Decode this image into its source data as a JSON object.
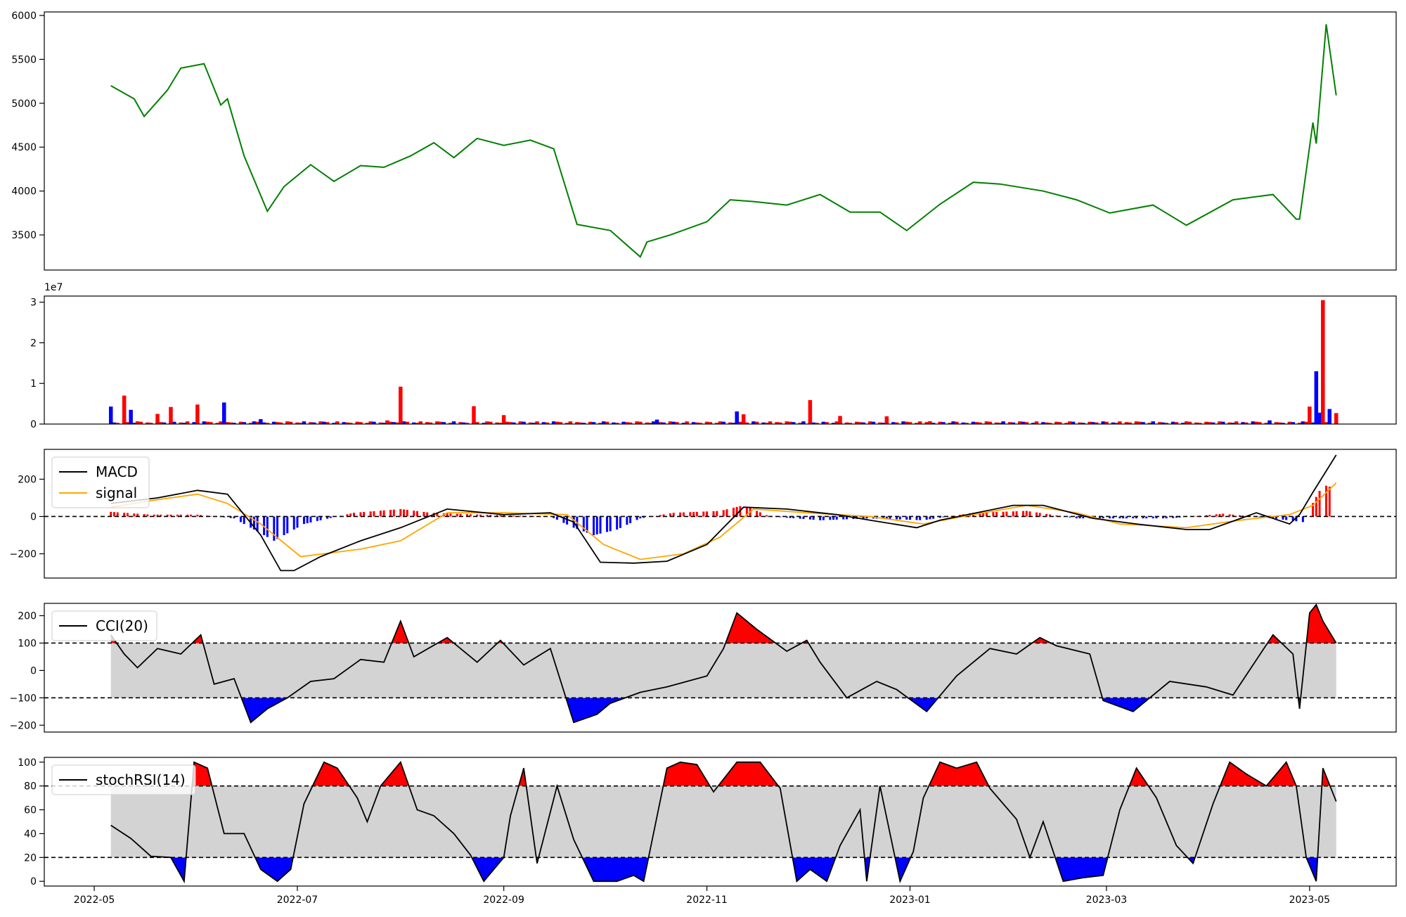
{
  "colors": {
    "price": "#008000",
    "up": "#ff0000",
    "down": "#0000ff",
    "macd": "#000000",
    "signal": "#ffa500",
    "band": "#d3d3d3",
    "axis": "#000000"
  },
  "chart_data": [
    {
      "id": "price",
      "type": "line",
      "ylim": [
        3100,
        6040
      ],
      "yticks": [
        "3500",
        "4000",
        "4500",
        "5000",
        "5500",
        "6000"
      ],
      "ytick_values": [
        3500,
        4000,
        4500,
        5000,
        5500,
        6000
      ],
      "series": [
        {
          "x": [
            "2022-05-06",
            "2022-05-13",
            "2022-05-16",
            "2022-05-23",
            "2022-05-27",
            "2022-06-03",
            "2022-06-08",
            "2022-06-10",
            "2022-06-15",
            "2022-06-22",
            "2022-06-27",
            "2022-07-05",
            "2022-07-12",
            "2022-07-20",
            "2022-07-27",
            "2022-08-04",
            "2022-08-11",
            "2022-08-17",
            "2022-08-24",
            "2022-09-01",
            "2022-09-09",
            "2022-09-16",
            "2022-09-23",
            "2022-10-03",
            "2022-10-12",
            "2022-10-14",
            "2022-10-21",
            "2022-11-01",
            "2022-11-08",
            "2022-11-15",
            "2022-11-25",
            "2022-12-05",
            "2022-12-14",
            "2022-12-23",
            "2022-12-31",
            "2023-01-10",
            "2023-01-20",
            "2023-01-28",
            "2023-02-10",
            "2023-02-20",
            "2023-03-02",
            "2023-03-15",
            "2023-03-25",
            "2023-04-08",
            "2023-04-20",
            "2023-04-27",
            "2023-04-28",
            "2023-05-02",
            "2023-05-03",
            "2023-05-06",
            "2023-05-09"
          ],
          "values": [
            5200,
            5050,
            4850,
            5150,
            5400,
            5450,
            4980,
            5050,
            4400,
            3770,
            4050,
            4300,
            4110,
            4290,
            4270,
            4400,
            4550,
            4380,
            4600,
            4520,
            4580,
            4480,
            3620,
            3550,
            3250,
            3420,
            3500,
            3650,
            3900,
            3880,
            3840,
            3960,
            3760,
            3760,
            3550,
            3850,
            4100,
            4080,
            4000,
            3900,
            3750,
            3840,
            3610,
            3900,
            3960,
            3680,
            3680,
            4780,
            4540,
            5900,
            5090
          ]
        }
      ]
    },
    {
      "id": "volume",
      "type": "bar",
      "ylim": [
        0,
        31500000
      ],
      "yticks": [
        "0",
        "1",
        "2",
        "3"
      ],
      "ytick_values": [
        0,
        10000000,
        20000000,
        30000000
      ],
      "offset_text": "1e7",
      "bars": [
        {
          "x": "2022-05-06",
          "value": 4300000,
          "dir": "down"
        },
        {
          "x": "2022-05-10",
          "value": 7000000,
          "dir": "up"
        },
        {
          "x": "2022-05-12",
          "value": 3500000,
          "dir": "down"
        },
        {
          "x": "2022-05-20",
          "value": 2500000,
          "dir": "up"
        },
        {
          "x": "2022-05-24",
          "value": 4200000,
          "dir": "up"
        },
        {
          "x": "2022-06-01",
          "value": 4800000,
          "dir": "up"
        },
        {
          "x": "2022-06-09",
          "value": 5300000,
          "dir": "down"
        },
        {
          "x": "2022-06-20",
          "value": 1200000,
          "dir": "down"
        },
        {
          "x": "2022-07-28",
          "value": 900000,
          "dir": "up"
        },
        {
          "x": "2022-08-01",
          "value": 9200000,
          "dir": "up"
        },
        {
          "x": "2022-08-23",
          "value": 4400000,
          "dir": "up"
        },
        {
          "x": "2022-09-01",
          "value": 2200000,
          "dir": "up"
        },
        {
          "x": "2022-10-17",
          "value": 1100000,
          "dir": "down"
        },
        {
          "x": "2022-11-10",
          "value": 3100000,
          "dir": "down"
        },
        {
          "x": "2022-11-12",
          "value": 2400000,
          "dir": "up"
        },
        {
          "x": "2022-12-02",
          "value": 5900000,
          "dir": "up"
        },
        {
          "x": "2022-12-11",
          "value": 2000000,
          "dir": "up"
        },
        {
          "x": "2022-12-25",
          "value": 1900000,
          "dir": "up"
        },
        {
          "x": "2023-01-07",
          "value": 700000,
          "dir": "up"
        },
        {
          "x": "2023-04-19",
          "value": 900000,
          "dir": "down"
        },
        {
          "x": "2023-05-01",
          "value": 4300000,
          "dir": "up"
        },
        {
          "x": "2023-05-03",
          "value": 13000000,
          "dir": "down"
        },
        {
          "x": "2023-05-04",
          "value": 2800000,
          "dir": "down"
        },
        {
          "x": "2023-05-05",
          "value": 30500000,
          "dir": "up"
        },
        {
          "x": "2023-05-07",
          "value": 3700000,
          "dir": "down"
        },
        {
          "x": "2023-05-09",
          "value": 2700000,
          "dir": "up"
        }
      ]
    },
    {
      "id": "macd",
      "type": "line",
      "ylim": [
        -330,
        360
      ],
      "yticks": [
        "−200",
        "0",
        "200"
      ],
      "ytick_values": [
        -200,
        0,
        200
      ],
      "zero_line": 0,
      "legend": [
        "MACD",
        "signal"
      ],
      "legend_position": "upper-left",
      "series": [
        {
          "name": "MACD",
          "x": [
            "2022-05-06",
            "2022-05-20",
            "2022-06-01",
            "2022-06-10",
            "2022-06-20",
            "2022-06-26",
            "2022-06-30",
            "2022-07-08",
            "2022-07-20",
            "2022-08-01",
            "2022-08-15",
            "2022-09-01",
            "2022-09-15",
            "2022-09-22",
            "2022-09-30",
            "2022-10-10",
            "2022-10-20",
            "2022-11-01",
            "2022-11-12",
            "2022-11-25",
            "2022-12-10",
            "2022-12-20",
            "2023-01-03",
            "2023-01-10",
            "2023-02-01",
            "2023-02-10",
            "2023-02-25",
            "2023-03-10",
            "2023-03-25",
            "2023-04-01",
            "2023-04-15",
            "2023-04-25",
            "2023-04-28",
            "2023-05-02",
            "2023-05-09"
          ],
          "values": [
            70,
            100,
            140,
            120,
            -100,
            -290,
            -290,
            -215,
            -130,
            -60,
            40,
            10,
            20,
            -30,
            -245,
            -250,
            -240,
            -150,
            50,
            40,
            10,
            -20,
            -60,
            -20,
            60,
            60,
            -10,
            -40,
            -70,
            -70,
            20,
            -40,
            10,
            130,
            330
          ]
        },
        {
          "name": "signal",
          "x": [
            "2022-05-06",
            "2022-05-20",
            "2022-06-01",
            "2022-06-10",
            "2022-06-20",
            "2022-07-02",
            "2022-07-20",
            "2022-08-01",
            "2022-08-15",
            "2022-09-01",
            "2022-09-20",
            "2022-10-01",
            "2022-10-12",
            "2022-10-25",
            "2022-11-05",
            "2022-11-15",
            "2022-12-01",
            "2022-12-20",
            "2023-01-05",
            "2023-01-20",
            "2023-02-05",
            "2023-02-20",
            "2023-03-05",
            "2023-03-25",
            "2023-04-10",
            "2023-04-25",
            "2023-05-02",
            "2023-05-09"
          ],
          "values": [
            50,
            90,
            120,
            70,
            -40,
            -215,
            -175,
            -130,
            20,
            20,
            10,
            -150,
            -230,
            -200,
            -110,
            40,
            20,
            0,
            -40,
            10,
            60,
            20,
            -40,
            -60,
            -20,
            10,
            60,
            180
          ]
        }
      ],
      "histogram": {
        "x": [
          "2022-05-06",
          "2022-05-18",
          "2022-06-01",
          "2022-06-12",
          "2022-06-18",
          "2022-06-24",
          "2022-07-03",
          "2022-07-18",
          "2022-08-01",
          "2022-08-10",
          "2022-08-25",
          "2022-09-15",
          "2022-09-22",
          "2022-09-28",
          "2022-10-05",
          "2022-10-12",
          "2022-10-22",
          "2022-11-05",
          "2022-11-12",
          "2022-11-20",
          "2022-12-05",
          "2022-12-20",
          "2023-01-05",
          "2023-01-20",
          "2023-02-05",
          "2023-02-20",
          "2023-03-05",
          "2023-03-20",
          "2023-04-05",
          "2023-04-20",
          "2023-04-29",
          "2023-05-01",
          "2023-05-05",
          "2023-05-09"
        ],
        "values": [
          25,
          10,
          10,
          -10,
          -70,
          -130,
          -40,
          20,
          40,
          20,
          10,
          0,
          -60,
          -100,
          -70,
          -10,
          20,
          30,
          60,
          0,
          -20,
          -10,
          -20,
          20,
          30,
          -10,
          -10,
          -10,
          15,
          -10,
          -30,
          40,
          170,
          150
        ]
      }
    },
    {
      "id": "cci",
      "type": "line",
      "ylim": [
        -225,
        245
      ],
      "yticks": [
        "−200",
        "−100",
        "0",
        "100",
        "200"
      ],
      "ytick_values": [
        -200,
        -100,
        0,
        100,
        200
      ],
      "thresholds": [
        100,
        -100
      ],
      "legend": [
        "CCI(20)"
      ],
      "legend_position": "upper-left",
      "series": [
        {
          "name": "CCI(20)",
          "x": [
            "2022-05-06",
            "2022-05-10",
            "2022-05-14",
            "2022-05-20",
            "2022-05-27",
            "2022-06-02",
            "2022-06-06",
            "2022-06-12",
            "2022-06-17",
            "2022-06-22",
            "2022-06-28",
            "2022-07-05",
            "2022-07-12",
            "2022-07-20",
            "2022-07-27",
            "2022-08-01",
            "2022-08-05",
            "2022-08-15",
            "2022-08-24",
            "2022-08-31",
            "2022-09-07",
            "2022-09-15",
            "2022-09-22",
            "2022-09-29",
            "2022-10-03",
            "2022-10-12",
            "2022-10-20",
            "2022-11-01",
            "2022-11-06",
            "2022-11-10",
            "2022-11-16",
            "2022-11-25",
            "2022-12-01",
            "2022-12-05",
            "2022-12-13",
            "2022-12-22",
            "2022-12-28",
            "2023-01-06",
            "2023-01-15",
            "2023-01-25",
            "2023-02-02",
            "2023-02-09",
            "2023-02-14",
            "2023-02-24",
            "2023-02-28",
            "2023-03-09",
            "2023-03-20",
            "2023-03-31",
            "2023-04-08",
            "2023-04-20",
            "2023-04-26",
            "2023-04-28",
            "2023-05-01",
            "2023-05-03",
            "2023-05-05",
            "2023-05-09"
          ],
          "values": [
            130,
            60,
            10,
            80,
            60,
            130,
            -50,
            -30,
            -190,
            -140,
            -100,
            -40,
            -30,
            40,
            30,
            180,
            50,
            120,
            30,
            110,
            20,
            80,
            -190,
            -160,
            -120,
            -80,
            -60,
            -20,
            80,
            210,
            150,
            70,
            110,
            30,
            -100,
            -40,
            -70,
            -150,
            -20,
            80,
            60,
            120,
            90,
            60,
            -110,
            -150,
            -40,
            -60,
            -90,
            130,
            60,
            -140,
            210,
            240,
            180,
            100
          ]
        }
      ]
    },
    {
      "id": "stochrsi",
      "type": "line",
      "ylim": [
        -4,
        104
      ],
      "yticks": [
        "0",
        "20",
        "40",
        "60",
        "80",
        "100"
      ],
      "ytick_values": [
        0,
        20,
        40,
        60,
        80,
        100
      ],
      "thresholds": [
        80,
        20
      ],
      "legend": [
        "stochRSI(14)"
      ],
      "legend_position": "upper-left",
      "series": [
        {
          "name": "stochRSI(14)",
          "x": [
            "2022-05-06",
            "2022-05-12",
            "2022-05-18",
            "2022-05-24",
            "2022-05-28",
            "2022-05-31",
            "2022-06-04",
            "2022-06-09",
            "2022-06-15",
            "2022-06-20",
            "2022-06-25",
            "2022-06-29",
            "2022-07-03",
            "2022-07-09",
            "2022-07-13",
            "2022-07-19",
            "2022-07-22",
            "2022-07-26",
            "2022-08-01",
            "2022-08-06",
            "2022-08-11",
            "2022-08-17",
            "2022-08-22",
            "2022-08-26",
            "2022-09-01",
            "2022-09-03",
            "2022-09-07",
            "2022-09-11",
            "2022-09-17",
            "2022-09-22",
            "2022-09-28",
            "2022-10-05",
            "2022-10-10",
            "2022-10-13",
            "2022-10-20",
            "2022-10-24",
            "2022-10-29",
            "2022-11-03",
            "2022-11-10",
            "2022-11-17",
            "2022-11-23",
            "2022-11-28",
            "2022-12-02",
            "2022-12-07",
            "2022-12-11",
            "2022-12-17",
            "2022-12-19",
            "2022-12-23",
            "2022-12-29",
            "2023-01-02",
            "2023-01-05",
            "2023-01-10",
            "2023-01-15",
            "2023-01-21",
            "2023-01-25",
            "2023-02-02",
            "2023-02-06",
            "2023-02-10",
            "2023-02-16",
            "2023-02-22",
            "2023-02-28",
            "2023-03-05",
            "2023-03-10",
            "2023-03-16",
            "2023-03-22",
            "2023-03-27",
            "2023-04-02",
            "2023-04-07",
            "2023-04-12",
            "2023-04-18",
            "2023-04-24",
            "2023-04-27",
            "2023-04-30",
            "2023-05-03",
            "2023-05-05",
            "2023-05-09"
          ],
          "values": [
            47,
            36,
            21,
            20,
            0,
            100,
            95,
            40,
            40,
            10,
            0,
            10,
            65,
            100,
            95,
            70,
            50,
            80,
            100,
            60,
            55,
            40,
            22,
            0,
            20,
            55,
            95,
            15,
            80,
            35,
            0,
            0,
            5,
            0,
            95,
            100,
            98,
            75,
            100,
            100,
            78,
            0,
            10,
            0,
            30,
            60,
            0,
            80,
            0,
            25,
            70,
            100,
            95,
            100,
            78,
            52,
            20,
            50,
            0,
            3,
            5,
            60,
            95,
            70,
            30,
            15,
            65,
            100,
            90,
            80,
            100,
            80,
            20,
            0,
            95,
            67
          ]
        }
      ]
    }
  ],
  "x_axis": {
    "tick_labels": [
      "2022-05",
      "2022-07",
      "2022-09",
      "2022-11",
      "2023-01",
      "2023-03",
      "2023-05"
    ],
    "tick_dates": [
      "2022-05-01",
      "2022-07-01",
      "2022-09-01",
      "2022-11-01",
      "2023-01-01",
      "2023-03-01",
      "2023-05-01"
    ],
    "range": [
      "2022-04-16",
      "2023-05-27"
    ]
  }
}
